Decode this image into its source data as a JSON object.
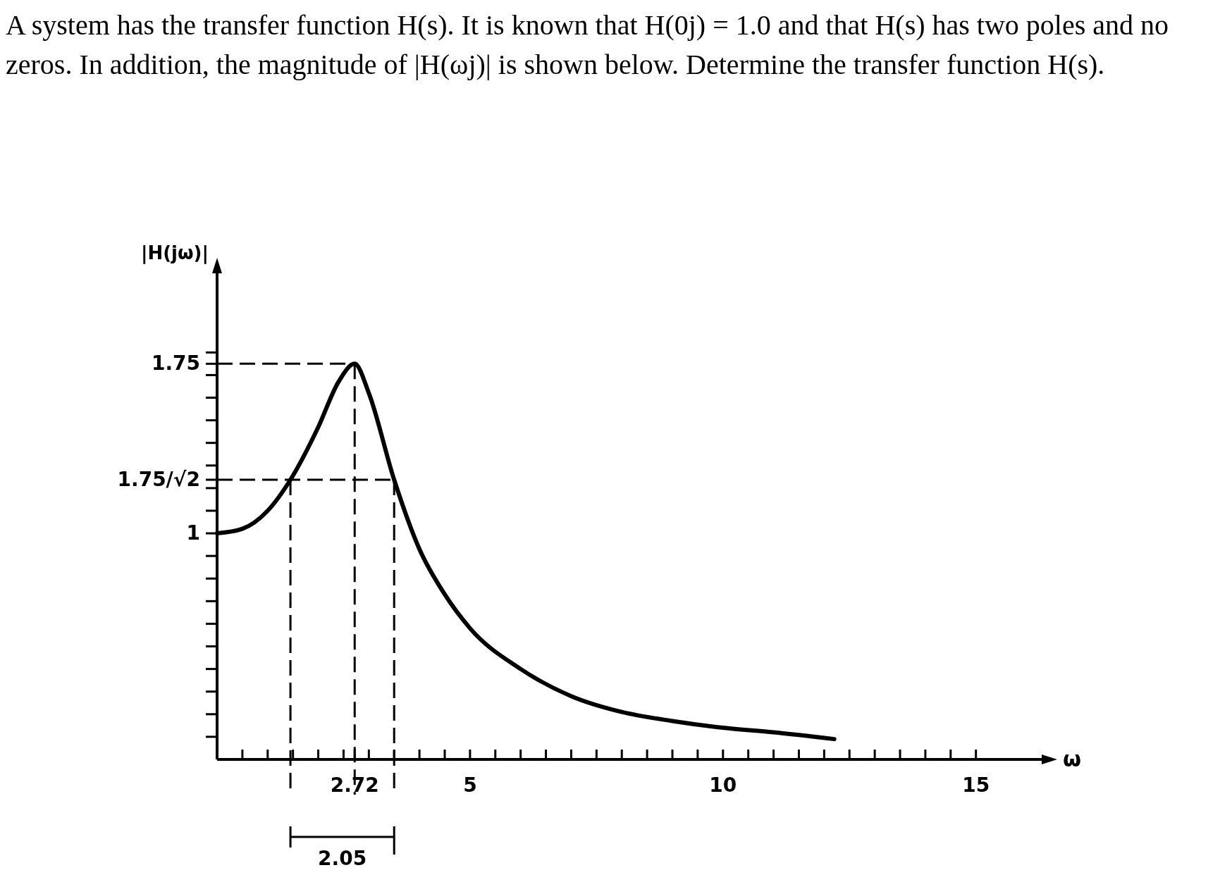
{
  "chart_data": {
    "type": "line",
    "title": "A system has the transfer function H(s). It is known that H(0j) = 1.0 and that H(s) has two poles and no zeros. In addition, the magnitude of  |H(ωj)| is shown below. Determine the transfer function H(s).",
    "xlabel": "ω",
    "ylabel": "|H(jω)|",
    "x": [
      0,
      0.5,
      1,
      1.45,
      2,
      2.4,
      2.72,
      3,
      3.5,
      4,
      4.5,
      5,
      6,
      7,
      8,
      9,
      10,
      11,
      12.2
    ],
    "series": [
      {
        "color": "#000000",
        "values": [
          1,
          1.02,
          1.1,
          1.237,
          1.47,
          1.67,
          1.75,
          1.62,
          1.237,
          0.93,
          0.73,
          0.58,
          0.4,
          0.28,
          0.21,
          0.17,
          0.14,
          0.12,
          0.09
        ]
      }
    ],
    "xlim": [
      0,
      16.3
    ],
    "ylim": [
      0,
      2.15
    ],
    "xticks": [
      {
        "value": 0.5,
        "label": null
      },
      {
        "value": 1,
        "label": null
      },
      {
        "value": 1.5,
        "label": null
      },
      {
        "value": 2,
        "label": null
      },
      {
        "value": 2.5,
        "label": null
      },
      {
        "value": 2.72,
        "label": "2.72"
      },
      {
        "value": 3,
        "label": null
      },
      {
        "value": 3.5,
        "label": null
      },
      {
        "value": 4,
        "label": null
      },
      {
        "value": 4.5,
        "label": null
      },
      5,
      {
        "value": 5.5,
        "label": null
      },
      {
        "value": 6,
        "label": null
      },
      {
        "value": 6.5,
        "label": null
      },
      {
        "value": 7,
        "label": null
      },
      {
        "value": 7.5,
        "label": null
      },
      {
        "value": 8,
        "label": null
      },
      {
        "value": 8.5,
        "label": null
      },
      {
        "value": 9,
        "label": null
      },
      {
        "value": 9.5,
        "label": null
      },
      10,
      {
        "value": 10.5,
        "label": null
      },
      {
        "value": 11,
        "label": null
      },
      {
        "value": 11.5,
        "label": null
      },
      {
        "value": 12,
        "label": null
      },
      {
        "value": 12.5,
        "label": null
      },
      {
        "value": 13,
        "label": null
      },
      {
        "value": 13.5,
        "label": null
      },
      {
        "value": 14,
        "label": null
      },
      {
        "value": 14.5,
        "label": null
      },
      15
    ],
    "yticks": [
      {
        "value": 0.1,
        "label": null
      },
      {
        "value": 0.2,
        "label": null
      },
      {
        "value": 0.3,
        "label": null
      },
      {
        "value": 0.4,
        "label": null
      },
      {
        "value": 0.5,
        "label": null
      },
      {
        "value": 0.6,
        "label": null
      },
      {
        "value": 0.7,
        "label": null
      },
      {
        "value": 0.8,
        "label": null
      },
      {
        "value": 0.9,
        "label": null
      },
      1,
      {
        "value": 1.1,
        "label": null
      },
      {
        "value": 1.2,
        "label": null
      },
      {
        "value": 1.237,
        "label": "1.75/√2"
      },
      {
        "value": 1.3,
        "label": null
      },
      {
        "value": 1.4,
        "label": null
      },
      {
        "value": 1.5,
        "label": null
      },
      {
        "value": 1.6,
        "label": null
      },
      {
        "value": 1.7,
        "label": null
      },
      1.75,
      {
        "value": 1.8,
        "label": null
      }
    ],
    "ref_lines": [
      {
        "axis": "y",
        "value": 1.75,
        "line_style": "dashed"
      },
      {
        "axis": "y",
        "value": 1.237,
        "line_style": "dashed"
      },
      {
        "axis": "x",
        "value": 1.45,
        "line_style": "dashed"
      },
      {
        "axis": "x",
        "value": 2.72,
        "line_style": "dashed"
      },
      {
        "axis": "x",
        "value": 3.5,
        "line_style": "dashed"
      }
    ],
    "annotations": [
      "2.05"
    ],
    "marker": "none",
    "line_style": "solid"
  }
}
